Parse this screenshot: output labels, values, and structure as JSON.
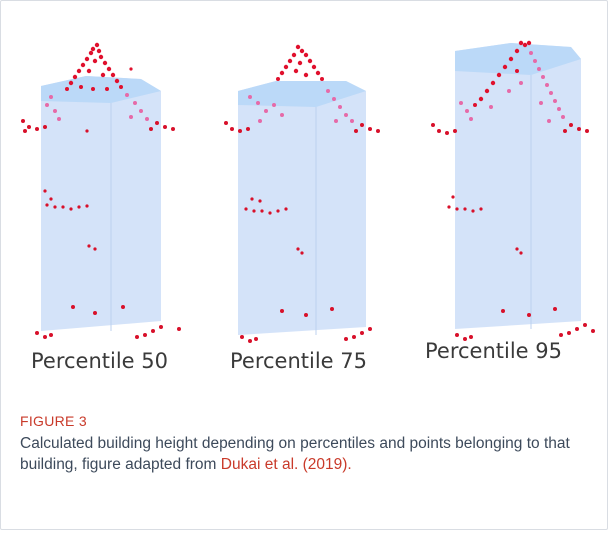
{
  "figure": {
    "panels": [
      {
        "label": "Percentile 50",
        "key": "p50"
      },
      {
        "label": "Percentile 75",
        "key": "p75"
      },
      {
        "label": "Percentile 95",
        "key": "p95"
      }
    ],
    "figure_label": "FIGURE 3",
    "caption_text": "Calculated building height depending on percentiles and points belonging to that building, figure adapted from ",
    "caption_link": "Dukai et al. (2019).",
    "colors": {
      "box_fill": "#cfe0f8",
      "box_top": "#b8d7f7",
      "roof_points": "#e0102d",
      "upper_points": "#e66aa8",
      "lower_points": "#d8102a",
      "label_text": "#3a3a3a",
      "figure_label": "#c93a2a",
      "caption": "#3d4a5b"
    }
  }
}
